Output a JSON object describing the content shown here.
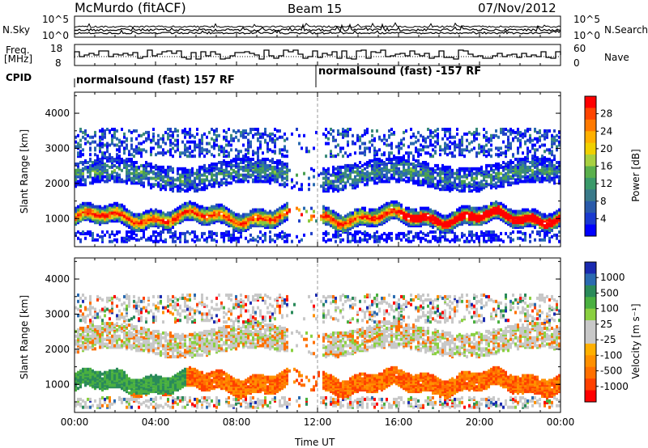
{
  "header": {
    "station": "McMurdo (fitACF)",
    "beam": "Beam 15",
    "date": "07/Nov/2012"
  },
  "top_panels": {
    "nsky_label": "N.Sky",
    "nsearch_label": "N.Search",
    "nsky_ticks": [
      "10^5",
      "10^0"
    ],
    "nsearch_ticks": [
      "10^5",
      "10^0"
    ],
    "freq_label": "Freq.",
    "freq_unit": "[MHz]",
    "freq_ticks": [
      "18",
      "8"
    ],
    "nave_label": "Nave",
    "nave_ticks": [
      "60",
      "0"
    ],
    "cpid_label": "CPID",
    "cpid_segments": [
      "normalsound (fast) 157 RF",
      "normalsound (fast) -157 RF"
    ]
  },
  "chart_data": [
    {
      "type": "heatmap",
      "name": "power",
      "ylabel": "Slant Range [km]",
      "yticks": [
        1000,
        2000,
        3000,
        4000
      ],
      "ylim": [
        200,
        4600
      ],
      "xlim_hours": [
        0,
        24
      ],
      "colorbar_label": "Power [dB]",
      "colorbar_ticks": [
        "28",
        "24",
        "20",
        "16",
        "12",
        "8",
        "4"
      ],
      "colorbar_colors": [
        "#ff0000",
        "#ff4400",
        "#ff7a00",
        "#ffb000",
        "#f0d000",
        "#a8d040",
        "#5ab04c",
        "#3a9a6a",
        "#3a7a8a",
        "#2a5aaa",
        "#1a3ad0",
        "#0000ff"
      ]
    },
    {
      "type": "heatmap",
      "name": "velocity",
      "ylabel": "Slant Range [km]",
      "yticks": [
        1000,
        2000,
        3000,
        4000
      ],
      "ylim": [
        200,
        4600
      ],
      "xlim_hours": [
        0,
        24
      ],
      "colorbar_label": "Velocity [m s⁻¹]",
      "colorbar_ticks": [
        "1000",
        "500",
        "100",
        "25",
        "-25",
        "-100",
        "-500",
        "-1000"
      ],
      "colorbar_colors": [
        "#1a2ab0",
        "#2a6ab0",
        "#2a8a5a",
        "#4ab040",
        "#8ad040",
        "#c8c8c8",
        "#c8c8c8",
        "#ffb000",
        "#ff9000",
        "#ff7000",
        "#ff4000",
        "#ff0000"
      ]
    }
  ],
  "x_axis": {
    "ticks": [
      "00:00",
      "04:00",
      "08:00",
      "12:00",
      "16:00",
      "20:00",
      "00:00"
    ],
    "label": "Time UT"
  }
}
